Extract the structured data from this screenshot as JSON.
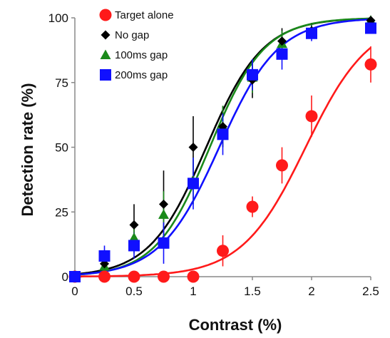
{
  "chart_data": {
    "type": "scatter",
    "title": "",
    "xlabel": "Contrast  (%)",
    "ylabel": "Detection rate  (%)",
    "xlim": [
      0,
      2.5
    ],
    "ylim": [
      0,
      100
    ],
    "x_ticks": [
      0,
      0.5,
      1,
      1.5,
      2,
      2.5
    ],
    "x_tick_labels": [
      "0",
      "0.5",
      "1",
      "1.5",
      "2",
      "2.5"
    ],
    "y_ticks": [
      0,
      25,
      50,
      75,
      100
    ],
    "y_tick_labels": [
      "0",
      "25",
      "50",
      "75",
      "100"
    ],
    "legend_position": "top-left",
    "fit": "sigmoid",
    "series": [
      {
        "name": "Target alone",
        "color": "#ff1a1a",
        "marker": "circle",
        "x": [
          0,
          0.25,
          0.5,
          0.75,
          1.0,
          1.25,
          1.5,
          1.75,
          2.0,
          2.5
        ],
        "y": [
          0,
          0,
          0,
          0,
          0,
          10,
          27,
          43,
          62,
          82
        ],
        "err": [
          0,
          0,
          0,
          0,
          0,
          6,
          4,
          7,
          8,
          7
        ],
        "fit_midpoint": 1.95,
        "fit_slope": 0.27
      },
      {
        "name": "No gap",
        "color": "#000000",
        "marker": "diamond",
        "x": [
          0,
          0.25,
          0.5,
          0.75,
          1.0,
          1.25,
          1.5,
          1.75,
          2.0,
          2.5
        ],
        "y": [
          0,
          5,
          20,
          28,
          50,
          58,
          76,
          91,
          95,
          99
        ],
        "err": [
          0,
          3,
          8,
          13,
          12,
          8,
          7,
          5,
          3,
          1
        ],
        "fit_midpoint": 1.11,
        "fit_slope": 0.24
      },
      {
        "name": "100ms gap",
        "color": "#1a8a1a",
        "marker": "triangle",
        "x": [
          0,
          0.25,
          0.5,
          0.75,
          1.0,
          1.25,
          1.5,
          1.75,
          2.0,
          2.5
        ],
        "y": [
          0,
          4,
          15,
          24,
          37,
          58,
          77,
          90,
          95,
          99
        ],
        "err": [
          0,
          3,
          6,
          9,
          9,
          8,
          6,
          5,
          3,
          1
        ],
        "fit_midpoint": 1.14,
        "fit_slope": 0.23
      },
      {
        "name": "200ms gap",
        "color": "#1010ff",
        "marker": "square",
        "x": [
          0,
          0.25,
          0.5,
          0.75,
          1.0,
          1.25,
          1.5,
          1.75,
          2.0,
          2.5
        ],
        "y": [
          0,
          8,
          12,
          13,
          36,
          55,
          78,
          86,
          94,
          96
        ],
        "err": [
          0,
          4,
          5,
          8,
          10,
          8,
          6,
          6,
          3,
          2
        ],
        "fit_midpoint": 1.22,
        "fit_slope": 0.25
      }
    ]
  }
}
